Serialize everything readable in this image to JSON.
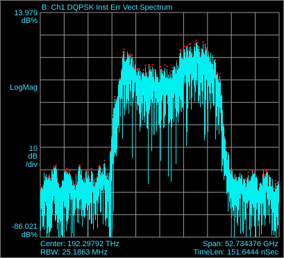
{
  "header": {
    "title": "B: Ch1 DQPSK Inst Err Vect Spectrum"
  },
  "y_axis": {
    "top_value": "13.979",
    "top_unit": "dB%",
    "format": "LogMag",
    "scale_value": "10",
    "scale_unit": "dB",
    "scale_per": "/div",
    "bottom_value": "-86.021",
    "bottom_unit": "dB%"
  },
  "footer": {
    "center": "Center: 192.29792 THz",
    "rbw": "RBW: 25.1863 MHz",
    "span": "Span: 52.734376 GHz",
    "timelen": "TimeLen: 151.6444 nSec"
  },
  "colors": {
    "trace": "#00f0f0",
    "peaks": "#ff2020",
    "grid": "#9a9a9a",
    "text": "#3ee0ff"
  },
  "chart_data": {
    "type": "line",
    "title": "B: Ch1 DQPSK Inst Err Vect Spectrum",
    "ylabel": "LogMag",
    "ylim": [
      -86.021,
      13.979
    ],
    "y_divisions": 10,
    "x_divisions": 10,
    "grid": true,
    "series": [
      {
        "values": [
          -65,
          -58,
          -60,
          -55,
          -62,
          -57,
          -59,
          -63,
          -56,
          -60,
          -58,
          -61,
          -57,
          -55,
          -59,
          -30,
          -20,
          -5,
          -6,
          -8,
          -12,
          -14,
          -12,
          -13,
          -15,
          -13,
          -12,
          -14,
          -10,
          -5,
          -3,
          -4,
          -2,
          -3,
          -2,
          -6,
          -10,
          -16,
          -45,
          -55,
          -60,
          -57,
          -62,
          -58,
          -60,
          -63,
          -58,
          -61,
          -64,
          -60
        ]
      }
    ]
  }
}
